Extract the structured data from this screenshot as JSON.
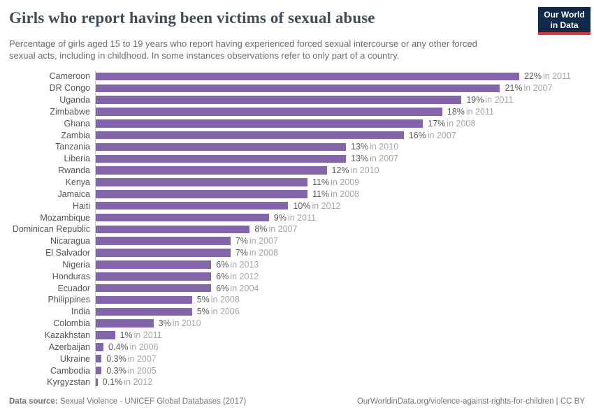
{
  "header": {
    "title": "Girls who report having been victims of sexual abuse",
    "subtitle": "Percentage of girls aged 15 to 19 years who report having experienced forced sexual intercourse or any other forced sexual acts, including in childhood. In some instances observations refer to only part of a country.",
    "logo_line1": "Our World",
    "logo_line2": "in Data"
  },
  "chart_data": {
    "type": "bar",
    "orientation": "horizontal",
    "title": "Girls who report having been victims of sexual abuse",
    "categories": [
      "Cameroon",
      "DR Congo",
      "Uganda",
      "Zimbabwe",
      "Ghana",
      "Zambia",
      "Tanzania",
      "Liberia",
      "Rwanda",
      "Kenya",
      "Jamaica",
      "Haiti",
      "Mozambique",
      "Dominican Republic",
      "Nicaragua",
      "El Salvador",
      "Nigeria",
      "Honduras",
      "Ecuador",
      "Philippines",
      "India",
      "Colombia",
      "Kazakhstan",
      "Azerbaijan",
      "Ukraine",
      "Cambodia",
      "Kyrgyzstan"
    ],
    "values": [
      22,
      21,
      19,
      18,
      17,
      16,
      13,
      13,
      12,
      11,
      11,
      10,
      9,
      8,
      7,
      7,
      6,
      6,
      6,
      5,
      5,
      3,
      1,
      0.4,
      0.3,
      0.3,
      0.1
    ],
    "value_labels": [
      "22%",
      "21%",
      "19%",
      "18%",
      "17%",
      "16%",
      "13%",
      "13%",
      "12%",
      "11%",
      "11%",
      "10%",
      "9%",
      "8%",
      "7%",
      "7%",
      "6%",
      "6%",
      "6%",
      "5%",
      "5%",
      "3%",
      "1%",
      "0.4%",
      "0.3%",
      "0.3%",
      "0.1%"
    ],
    "year_labels": [
      "in 2011",
      "in 2007",
      "in 2011",
      "in 2011",
      "in 2008",
      "in 2007",
      "in 2010",
      "in 2007",
      "in 2010",
      "in 2009",
      "in 2008",
      "in 2012",
      "in 2011",
      "in 2007",
      "in 2007",
      "in 2008",
      "in 2013",
      "in 2012",
      "in 2004",
      "in 2008",
      "in 2006",
      "in 2010",
      "in 2011",
      "in 2006",
      "in 2007",
      "in 2005",
      "in 2012"
    ],
    "xlim": [
      0,
      22
    ],
    "bar_color": "#8465ab",
    "grid": false,
    "legend": "none",
    "unit": "%"
  },
  "footer": {
    "datasource_label": "Data source:",
    "datasource_value": " Sexual Violence - UNICEF Global Databases (2017)",
    "credit": "OurWorldinData.org/violence-against-rights-for-children | CC BY"
  },
  "colors": {
    "bar": "#8465ab",
    "title": "#404e5c",
    "subtitle": "#6d6d6d",
    "label": "#555555",
    "value": "#5b5b5b",
    "year": "#a5a5a5",
    "axis": "#cccccc",
    "logo_bg": "#12294a",
    "logo_accent": "#d3392e"
  }
}
